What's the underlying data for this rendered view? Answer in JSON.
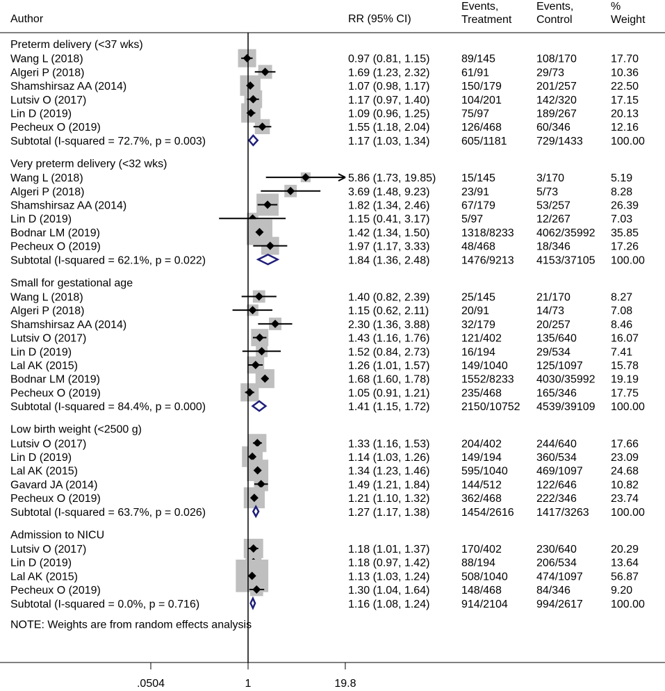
{
  "chart_data": {
    "type": "forest",
    "scale": "log",
    "header": {
      "author": "Author",
      "rr": "RR (95% CI)",
      "events_treatment": [
        "Events,",
        "Treatment"
      ],
      "events_control": [
        "Events,",
        "Control"
      ],
      "weight": [
        "%",
        "Weight"
      ]
    },
    "x_ticks": [
      {
        "value": 0.0504,
        "label": ".0504"
      },
      {
        "value": 1,
        "label": "1"
      },
      {
        "value": 19.8,
        "label": "19.8"
      }
    ],
    "note": "NOTE: Weights are from random effects analysis",
    "groups": [
      {
        "title": "Preterm delivery (<37 wks)",
        "studies": [
          {
            "author": "Wang L (2018)",
            "rr": 0.97,
            "lo": 0.81,
            "hi": 1.15,
            "ci_text": "0.97 (0.81, 1.15)",
            "ev_t": "89/145",
            "ev_c": "108/170",
            "weight": 17.7,
            "weight_text": "17.70"
          },
          {
            "author": "Algeri P (2018)",
            "rr": 1.69,
            "lo": 1.23,
            "hi": 2.32,
            "ci_text": "1.69 (1.23, 2.32)",
            "ev_t": "61/91",
            "ev_c": "29/73",
            "weight": 10.36,
            "weight_text": "10.36"
          },
          {
            "author": "Shamshirsaz AA (2014)",
            "rr": 1.07,
            "lo": 0.98,
            "hi": 1.17,
            "ci_text": "1.07 (0.98, 1.17)",
            "ev_t": "150/179",
            "ev_c": "201/257",
            "weight": 22.5,
            "weight_text": "22.50"
          },
          {
            "author": "Lutsiv O (2017)",
            "rr": 1.17,
            "lo": 0.97,
            "hi": 1.4,
            "ci_text": "1.17 (0.97, 1.40)",
            "ev_t": "104/201",
            "ev_c": "142/320",
            "weight": 17.15,
            "weight_text": "17.15"
          },
          {
            "author": "Lin D (2019)",
            "rr": 1.09,
            "lo": 0.96,
            "hi": 1.25,
            "ci_text": "1.09 (0.96, 1.25)",
            "ev_t": "75/97",
            "ev_c": "189/267",
            "weight": 20.13,
            "weight_text": "20.13"
          },
          {
            "author": "Pecheux O (2019)",
            "rr": 1.55,
            "lo": 1.18,
            "hi": 2.04,
            "ci_text": "1.55 (1.18, 2.04)",
            "ev_t": "126/468",
            "ev_c": "60/346",
            "weight": 12.16,
            "weight_text": "12.16"
          }
        ],
        "subtotal": {
          "label": "Subtotal  (I-squared = 72.7%, p = 0.003)",
          "rr": 1.17,
          "lo": 1.03,
          "hi": 1.34,
          "ci_text": "1.17 (1.03, 1.34)",
          "ev_t": "605/1181",
          "ev_c": "729/1433",
          "weight_text": "100.00"
        }
      },
      {
        "title": "Very preterm delivery (<32 wks)",
        "studies": [
          {
            "author": "Wang L (2018)",
            "rr": 5.86,
            "lo": 1.73,
            "hi": 19.85,
            "ci_text": "5.86 (1.73, 19.85)",
            "ev_t": "15/145",
            "ev_c": "3/170",
            "weight": 5.19,
            "weight_text": "5.19"
          },
          {
            "author": "Algeri P (2018)",
            "rr": 3.69,
            "lo": 1.48,
            "hi": 9.23,
            "ci_text": "3.69 (1.48, 9.23)",
            "ev_t": "23/91",
            "ev_c": "5/73",
            "weight": 8.28,
            "weight_text": "8.28"
          },
          {
            "author": "Shamshirsaz AA (2014)",
            "rr": 1.82,
            "lo": 1.34,
            "hi": 2.46,
            "ci_text": "1.82 (1.34, 2.46)",
            "ev_t": "67/179",
            "ev_c": "53/257",
            "weight": 26.39,
            "weight_text": "26.39"
          },
          {
            "author": "Lin D (2019)",
            "rr": 1.15,
            "lo": 0.41,
            "hi": 3.17,
            "ci_text": "1.15 (0.41, 3.17)",
            "ev_t": "5/97",
            "ev_c": "12/267",
            "weight": 7.03,
            "weight_text": "7.03"
          },
          {
            "author": "Bodnar LM (2019)",
            "rr": 1.42,
            "lo": 1.34,
            "hi": 1.5,
            "ci_text": "1.42 (1.34, 1.50)",
            "ev_t": "1318/8233",
            "ev_c": "4062/35992",
            "weight": 35.85,
            "weight_text": "35.85"
          },
          {
            "author": "Pecheux O (2019)",
            "rr": 1.97,
            "lo": 1.17,
            "hi": 3.33,
            "ci_text": "1.97 (1.17, 3.33)",
            "ev_t": "48/468",
            "ev_c": "18/346",
            "weight": 17.26,
            "weight_text": "17.26"
          }
        ],
        "subtotal": {
          "label": "Subtotal  (I-squared = 62.1%, p = 0.022)",
          "rr": 1.84,
          "lo": 1.36,
          "hi": 2.48,
          "ci_text": "1.84 (1.36, 2.48)",
          "ev_t": "1476/9213",
          "ev_c": "4153/37105",
          "weight_text": "100.00"
        }
      },
      {
        "title": "Small for gestational age",
        "studies": [
          {
            "author": "Wang L (2018)",
            "rr": 1.4,
            "lo": 0.82,
            "hi": 2.39,
            "ci_text": "1.40 (0.82, 2.39)",
            "ev_t": "25/145",
            "ev_c": "21/170",
            "weight": 8.27,
            "weight_text": "8.27"
          },
          {
            "author": "Algeri P (2018)",
            "rr": 1.15,
            "lo": 0.62,
            "hi": 2.11,
            "ci_text": "1.15 (0.62, 2.11)",
            "ev_t": "20/91",
            "ev_c": "14/73",
            "weight": 7.08,
            "weight_text": "7.08"
          },
          {
            "author": "Shamshirsaz AA (2014)",
            "rr": 2.3,
            "lo": 1.36,
            "hi": 3.88,
            "ci_text": "2.30 (1.36, 3.88)",
            "ev_t": "32/179",
            "ev_c": "20/257",
            "weight": 8.46,
            "weight_text": "8.46"
          },
          {
            "author": "Lutsiv O (2017)",
            "rr": 1.43,
            "lo": 1.16,
            "hi": 1.76,
            "ci_text": "1.43 (1.16, 1.76)",
            "ev_t": "121/402",
            "ev_c": "135/640",
            "weight": 16.07,
            "weight_text": "16.07"
          },
          {
            "author": "Lin D (2019)",
            "rr": 1.52,
            "lo": 0.84,
            "hi": 2.73,
            "ci_text": "1.52 (0.84, 2.73)",
            "ev_t": "16/194",
            "ev_c": "29/534",
            "weight": 7.41,
            "weight_text": "7.41"
          },
          {
            "author": "Lal AK (2015)",
            "rr": 1.26,
            "lo": 1.01,
            "hi": 1.57,
            "ci_text": "1.26 (1.01, 1.57)",
            "ev_t": "149/1040",
            "ev_c": "125/1097",
            "weight": 15.78,
            "weight_text": "15.78"
          },
          {
            "author": "Bodnar LM (2019)",
            "rr": 1.68,
            "lo": 1.6,
            "hi": 1.78,
            "ci_text": "1.68 (1.60, 1.78)",
            "ev_t": "1552/8233",
            "ev_c": "4030/35992",
            "weight": 19.19,
            "weight_text": "19.19"
          },
          {
            "author": "Pecheux O (2019)",
            "rr": 1.05,
            "lo": 0.91,
            "hi": 1.21,
            "ci_text": "1.05 (0.91, 1.21)",
            "ev_t": "235/468",
            "ev_c": "165/346",
            "weight": 17.75,
            "weight_text": "17.75"
          }
        ],
        "subtotal": {
          "label": "Subtotal  (I-squared = 84.4%, p = 0.000)",
          "rr": 1.41,
          "lo": 1.15,
          "hi": 1.72,
          "ci_text": "1.41 (1.15, 1.72)",
          "ev_t": "2150/10752",
          "ev_c": "4539/39109",
          "weight_text": "100.00"
        }
      },
      {
        "title": "Low birth weight (<2500 g)",
        "studies": [
          {
            "author": "Lutsiv O (2017)",
            "rr": 1.33,
            "lo": 1.16,
            "hi": 1.53,
            "ci_text": "1.33 (1.16, 1.53)",
            "ev_t": "204/402",
            "ev_c": "244/640",
            "weight": 17.66,
            "weight_text": "17.66"
          },
          {
            "author": "Lin D (2019)",
            "rr": 1.14,
            "lo": 1.03,
            "hi": 1.26,
            "ci_text": "1.14 (1.03, 1.26)",
            "ev_t": "149/194",
            "ev_c": "360/534",
            "weight": 23.09,
            "weight_text": "23.09"
          },
          {
            "author": "Lal AK (2015)",
            "rr": 1.34,
            "lo": 1.23,
            "hi": 1.46,
            "ci_text": "1.34 (1.23, 1.46)",
            "ev_t": "595/1040",
            "ev_c": "469/1097",
            "weight": 24.68,
            "weight_text": "24.68"
          },
          {
            "author": "Gavard JA (2014)",
            "rr": 1.49,
            "lo": 1.21,
            "hi": 1.84,
            "ci_text": "1.49 (1.21, 1.84)",
            "ev_t": "144/512",
            "ev_c": "122/646",
            "weight": 10.82,
            "weight_text": "10.82"
          },
          {
            "author": "Pecheux O (2019)",
            "rr": 1.21,
            "lo": 1.1,
            "hi": 1.32,
            "ci_text": "1.21 (1.10, 1.32)",
            "ev_t": "362/468",
            "ev_c": "222/346",
            "weight": 23.74,
            "weight_text": "23.74"
          }
        ],
        "subtotal": {
          "label": "Subtotal  (I-squared = 63.7%, p = 0.026)",
          "rr": 1.27,
          "lo": 1.17,
          "hi": 1.38,
          "ci_text": "1.27 (1.17, 1.38)",
          "ev_t": "1454/2616",
          "ev_c": "1417/3263",
          "weight_text": "100.00"
        }
      },
      {
        "title": "Admission to NICU",
        "studies": [
          {
            "author": "Lutsiv O (2017)",
            "rr": 1.18,
            "lo": 1.01,
            "hi": 1.37,
            "ci_text": "1.18 (1.01, 1.37)",
            "ev_t": "170/402",
            "ev_c": "230/640",
            "weight": 20.29,
            "weight_text": "20.29"
          },
          {
            "author": "Lin D (2019)",
            "rr": 1.18,
            "lo": 0.97,
            "hi": 1.42,
            "ci_text": "1.18 (0.97, 1.42)",
            "ev_t": "88/194",
            "ev_c": "206/534",
            "weight": 13.64,
            "weight_text": "13.64"
          },
          {
            "author": "Lal AK (2015)",
            "rr": 1.13,
            "lo": 1.03,
            "hi": 1.24,
            "ci_text": "1.13 (1.03, 1.24)",
            "ev_t": "508/1040",
            "ev_c": "474/1097",
            "weight": 56.87,
            "weight_text": "56.87"
          },
          {
            "author": "Pecheux O (2019)",
            "rr": 1.3,
            "lo": 1.04,
            "hi": 1.64,
            "ci_text": "1.30 (1.04, 1.64)",
            "ev_t": "148/468",
            "ev_c": "84/346",
            "weight": 9.2,
            "weight_text": "9.20"
          }
        ],
        "subtotal": {
          "label": "Subtotal  (I-squared = 0.0%, p = 0.716)",
          "rr": 1.16,
          "lo": 1.08,
          "hi": 1.24,
          "ci_text": "1.16 (1.08, 1.24)",
          "ev_t": "914/2104",
          "ev_c": "994/2617",
          "weight_text": "100.00"
        }
      }
    ]
  },
  "colors": {
    "text": "#000000",
    "weight_box": "#bfbfbf",
    "point": "#000000",
    "diamond": "#1f1f7a",
    "line": "#000000"
  }
}
